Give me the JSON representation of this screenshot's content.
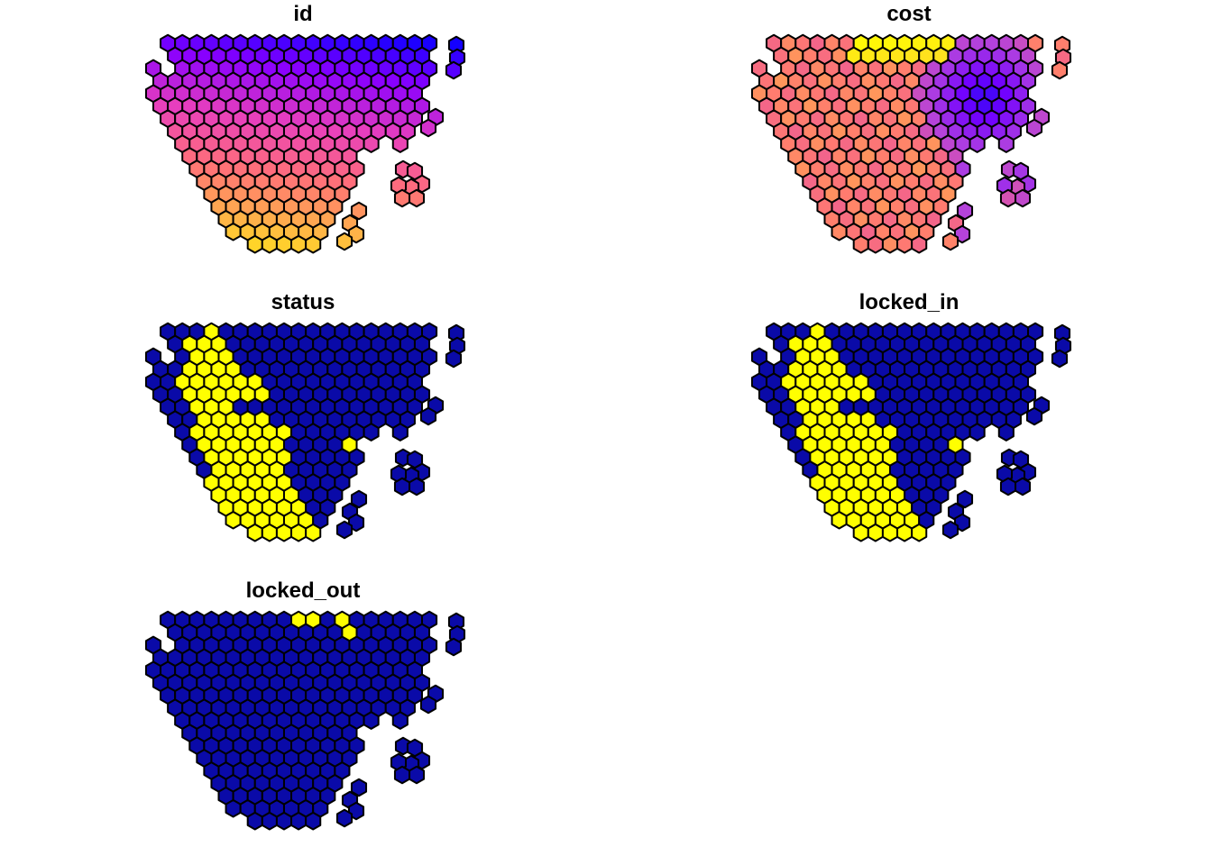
{
  "panels": [
    {
      "id": "id",
      "title": "id",
      "style": "gradient",
      "colors": [
        "#0000FF",
        "#8A00FF",
        "#E73EBE",
        "#FF6E7A",
        "#FFB546",
        "#FFFF00"
      ]
    },
    {
      "id": "cost",
      "title": "cost",
      "style": "cost",
      "colors": [
        "#1010F0",
        "#7000FF",
        "#B040E0",
        "#F06090",
        "#FF7A70",
        "#FF9A58",
        "#FFC040",
        "#FFFF00"
      ]
    },
    {
      "id": "status",
      "title": "status",
      "style": "status",
      "colors": [
        "#0A0AA8",
        "#FFFF00"
      ]
    },
    {
      "id": "locked_in",
      "title": "locked_in",
      "style": "status",
      "colors": [
        "#0A0AA8",
        "#FFFF00"
      ]
    },
    {
      "id": "locked_out",
      "title": "locked_out",
      "style": "locked_out",
      "colors": [
        "#0A0AA8",
        "#FFFF00"
      ]
    }
  ]
}
